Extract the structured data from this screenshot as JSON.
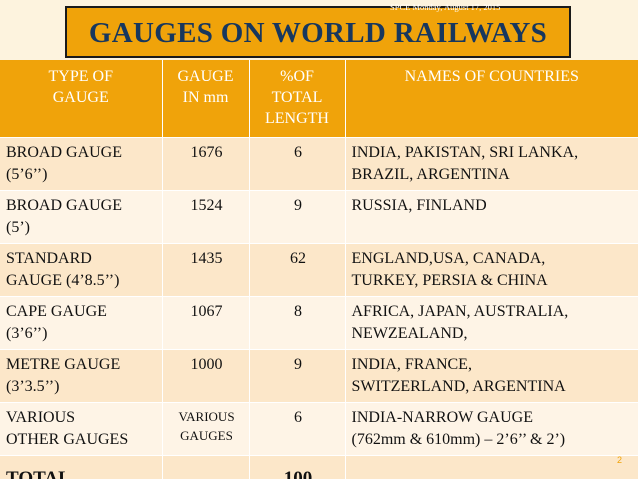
{
  "title": "GAUGES ON WORLD RAILWAYS",
  "header_meta": "SPCE     Monday, August 17, 2015",
  "page_number": "2",
  "colors": {
    "accent": "#f0a30a",
    "title_text": "#17375e",
    "row_odd": "#fce7c9",
    "row_even": "#fef4e6",
    "background": "#fdf3de"
  },
  "table": {
    "headers": [
      [
        "TYPE OF",
        "GAUGE"
      ],
      [
        "GAUGE",
        "IN mm"
      ],
      [
        "%OF",
        "TOTAL",
        "LENGTH"
      ],
      [
        "NAMES OF COUNTRIES"
      ]
    ],
    "rows": [
      {
        "type": [
          "BROAD GAUGE",
          "(5’6’’)"
        ],
        "mm": "1676",
        "pct": "6",
        "countries": [
          "INDIA, PAKISTAN, SRI LANKA,",
          "BRAZIL, ARGENTINA"
        ]
      },
      {
        "type": [
          "BROAD GAUGE",
          "(5’)"
        ],
        "mm": "1524",
        "pct": "9",
        "countries": [
          "RUSSIA, FINLAND"
        ]
      },
      {
        "type": [
          "STANDARD",
          "GAUGE (4’8.5’’)"
        ],
        "mm": "1435",
        "pct": "62",
        "countries": [
          "ENGLAND,USA, CANADA,",
          "TURKEY, PERSIA & CHINA"
        ]
      },
      {
        "type": [
          "CAPE GAUGE",
          "(3’6’’)"
        ],
        "mm": "1067",
        "pct": "8",
        "countries": [
          "AFRICA, JAPAN, AUSTRALIA,",
          "NEWZEALAND,"
        ]
      },
      {
        "type": [
          "METRE GAUGE",
          "(3’3.5’’)"
        ],
        "mm": "1000",
        "pct": "9",
        "countries": [
          "INDIA, FRANCE,",
          "SWITZERLAND,  ARGENTINA"
        ]
      },
      {
        "type": [
          "VARIOUS",
          "OTHER GAUGES"
        ],
        "mm": [
          "VARIOUS",
          "GAUGES"
        ],
        "pct": "6",
        "countries": [
          "INDIA-NARROW GAUGE",
          "(762mm &  610mm) – 2’6’’ & 2’)"
        ]
      }
    ],
    "total": {
      "label": "TOTAL",
      "pct": "100"
    }
  }
}
